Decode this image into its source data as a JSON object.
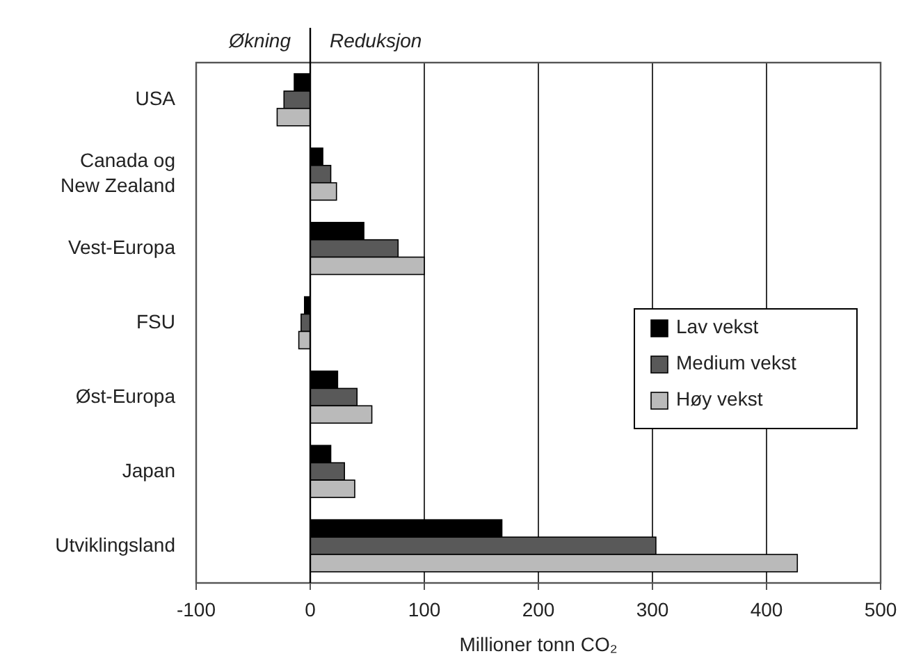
{
  "chart_data": {
    "type": "bar",
    "orientation": "horizontal",
    "categories": [
      "USA",
      "Canada og New Zealand",
      "Vest-Europa",
      "FSU",
      "Øst-Europa",
      "Japan",
      "Utviklingsland"
    ],
    "series": [
      {
        "name": "Lav vekst",
        "color": "#000000",
        "values": [
          -14,
          11,
          47,
          -5,
          24,
          18,
          168
        ]
      },
      {
        "name": "Medium vekst",
        "color": "#595959",
        "values": [
          -23,
          18,
          77,
          -8,
          41,
          30,
          303
        ]
      },
      {
        "name": "Høy vekst",
        "color": "#bababa",
        "values": [
          -29,
          23,
          100,
          -10,
          54,
          39,
          427
        ]
      }
    ],
    "xlim": [
      -100,
      500
    ],
    "xticks": [
      -100,
      0,
      100,
      200,
      300,
      400,
      500
    ],
    "xlabel": "Millioner tonn CO₂",
    "grid": "x",
    "legend": "right",
    "annotations": [
      "Økning",
      "Reduksjon"
    ]
  }
}
